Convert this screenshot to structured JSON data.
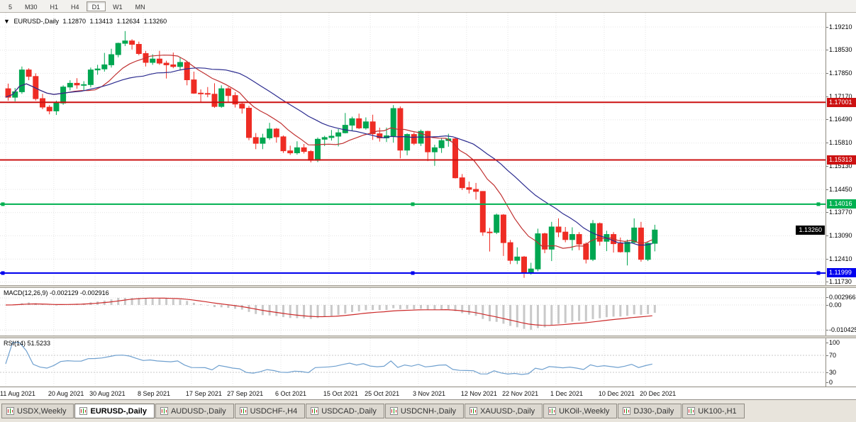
{
  "toolbar": {
    "timeframe_buttons": [
      "5",
      "M30",
      "H1",
      "H4",
      "D1",
      "W1",
      "MN"
    ],
    "active_timeframe": "D1"
  },
  "chart_header": {
    "marker": "▼",
    "symbol": "EURUSD-,Daily",
    "open": "1.12870",
    "high": "1.13413",
    "low": "1.12634",
    "close": "1.13260"
  },
  "chart_data": {
    "type": "candlestick",
    "symbol": "EURUSD-",
    "timeframe": "Daily",
    "ohlc_last": {
      "open": 1.1287,
      "high": 1.13413,
      "low": 1.12634,
      "close": 1.1326
    },
    "current_price_label": "1.13260",
    "price_ticks": [
      "1.19210",
      "1.18530",
      "1.17850",
      "1.17170",
      "1.16490",
      "1.15810",
      "1.15130",
      "1.14450",
      "1.13770",
      "1.13090",
      "1.12410",
      "1.11730"
    ],
    "date_labels": [
      {
        "label": "11 Aug 2021",
        "index": 0
      },
      {
        "label": "20 Aug 2021",
        "index": 7
      },
      {
        "label": "30 Aug 2021",
        "index": 13
      },
      {
        "label": "8 Sep 2021",
        "index": 20
      },
      {
        "label": "17 Sep 2021",
        "index": 27
      },
      {
        "label": "27 Sep 2021",
        "index": 33
      },
      {
        "label": "6 Oct 2021",
        "index": 40
      },
      {
        "label": "15 Oct 2021",
        "index": 47
      },
      {
        "label": "25 Oct 2021",
        "index": 53
      },
      {
        "label": "3 Nov 2021",
        "index": 60
      },
      {
        "label": "12 Nov 2021",
        "index": 67
      },
      {
        "label": "22 Nov 2021",
        "index": 73
      },
      {
        "label": "1 Dec 2021",
        "index": 80
      },
      {
        "label": "10 Dec 2021",
        "index": 87
      },
      {
        "label": "20 Dec 2021",
        "index": 93
      }
    ],
    "horizontal_lines": [
      {
        "price": 1.17001,
        "label": "1.17001",
        "color": "#cc1111",
        "handles": false
      },
      {
        "price": 1.15313,
        "label": "1.15313",
        "color": "#cc1111",
        "handles": false
      },
      {
        "price": 1.14016,
        "label": "1.14016",
        "color": "#00b050",
        "handles": true
      },
      {
        "price": 1.11999,
        "label": "1.11999",
        "color": "#0000ee",
        "handles": true
      }
    ],
    "moving_averages": [
      {
        "period": 10,
        "color": "#c03030",
        "name": "fast-ma"
      },
      {
        "period": 21,
        "color": "#2b2b8f",
        "name": "slow-ma"
      }
    ],
    "colors": {
      "up": "#00a651",
      "down": "#ee2c24"
    },
    "candles": [
      [
        1.174,
        1.1755,
        1.1705,
        1.1715
      ],
      [
        1.1715,
        1.1742,
        1.1703,
        1.1731
      ],
      [
        1.1731,
        1.1805,
        1.1725,
        1.1795
      ],
      [
        1.1795,
        1.18,
        1.1765,
        1.1776
      ],
      [
        1.1776,
        1.1785,
        1.1705,
        1.1711
      ],
      [
        1.1711,
        1.1725,
        1.168,
        1.1686
      ],
      [
        1.1686,
        1.1692,
        1.1665,
        1.1675
      ],
      [
        1.1675,
        1.1705,
        1.1663,
        1.1698
      ],
      [
        1.1698,
        1.175,
        1.1693,
        1.1745
      ],
      [
        1.1745,
        1.1765,
        1.1735,
        1.1756
      ],
      [
        1.1756,
        1.1771,
        1.174,
        1.1751
      ],
      [
        1.1751,
        1.1762,
        1.1735,
        1.1752
      ],
      [
        1.1752,
        1.1802,
        1.1744,
        1.1795
      ],
      [
        1.1795,
        1.181,
        1.1781,
        1.1798
      ],
      [
        1.1798,
        1.1845,
        1.179,
        1.181
      ],
      [
        1.181,
        1.1857,
        1.1802,
        1.184
      ],
      [
        1.184,
        1.1875,
        1.1832,
        1.1873
      ],
      [
        1.1873,
        1.1909,
        1.1865,
        1.188
      ],
      [
        1.188,
        1.1885,
        1.1855,
        1.187
      ],
      [
        1.187,
        1.1878,
        1.1838,
        1.1843
      ],
      [
        1.1843,
        1.1851,
        1.1805,
        1.1817
      ],
      [
        1.1817,
        1.1841,
        1.181,
        1.1827
      ],
      [
        1.1827,
        1.1851,
        1.181,
        1.1815
      ],
      [
        1.1815,
        1.1822,
        1.177,
        1.181
      ],
      [
        1.181,
        1.1846,
        1.18,
        1.1805
      ],
      [
        1.1805,
        1.1832,
        1.1795,
        1.1817
      ],
      [
        1.1817,
        1.1822,
        1.175,
        1.1766
      ],
      [
        1.1766,
        1.179,
        1.1725,
        1.1727
      ],
      [
        1.1727,
        1.1738,
        1.17,
        1.1726
      ],
      [
        1.1726,
        1.1745,
        1.1715,
        1.1724
      ],
      [
        1.1724,
        1.1756,
        1.1684,
        1.1688
      ],
      [
        1.1688,
        1.175,
        1.1684,
        1.174
      ],
      [
        1.174,
        1.1745,
        1.1702,
        1.172
      ],
      [
        1.172,
        1.173,
        1.1685,
        1.1695
      ],
      [
        1.1695,
        1.17,
        1.1667,
        1.1683
      ],
      [
        1.1683,
        1.169,
        1.1589,
        1.1597
      ],
      [
        1.1597,
        1.161,
        1.1563,
        1.158
      ],
      [
        1.158,
        1.1608,
        1.1563,
        1.1596
      ],
      [
        1.1596,
        1.164,
        1.159,
        1.1622
      ],
      [
        1.1622,
        1.1625,
        1.1582,
        1.1599
      ],
      [
        1.1599,
        1.1603,
        1.1552,
        1.1558
      ],
      [
        1.1558,
        1.1573,
        1.1546,
        1.1552
      ],
      [
        1.1552,
        1.1586,
        1.1547,
        1.1567
      ],
      [
        1.1567,
        1.1578,
        1.155,
        1.1556
      ],
      [
        1.1556,
        1.156,
        1.1524,
        1.153
      ],
      [
        1.153,
        1.1597,
        1.1525,
        1.1592
      ],
      [
        1.1592,
        1.1602,
        1.1572,
        1.1597
      ],
      [
        1.1597,
        1.1619,
        1.1588,
        1.1601
      ],
      [
        1.1601,
        1.1622,
        1.1571,
        1.1611
      ],
      [
        1.1611,
        1.1669,
        1.1609,
        1.1633
      ],
      [
        1.1633,
        1.1658,
        1.1617,
        1.1652
      ],
      [
        1.1652,
        1.1667,
        1.1622,
        1.1625
      ],
      [
        1.1625,
        1.1656,
        1.162,
        1.1643
      ],
      [
        1.1643,
        1.1664,
        1.159,
        1.1608
      ],
      [
        1.1608,
        1.1626,
        1.1585,
        1.1596
      ],
      [
        1.1596,
        1.1626,
        1.1584,
        1.1602
      ],
      [
        1.1602,
        1.1692,
        1.1582,
        1.1682
      ],
      [
        1.1682,
        1.1688,
        1.1536,
        1.156
      ],
      [
        1.156,
        1.1609,
        1.1545,
        1.1606
      ],
      [
        1.1606,
        1.1612,
        1.1575,
        1.158
      ],
      [
        1.158,
        1.162,
        1.1572,
        1.1615
      ],
      [
        1.1615,
        1.1617,
        1.1528,
        1.1555
      ],
      [
        1.1555,
        1.1576,
        1.1514,
        1.1567
      ],
      [
        1.1567,
        1.1596,
        1.1552,
        1.1588
      ],
      [
        1.1588,
        1.1608,
        1.157,
        1.1593
      ],
      [
        1.1593,
        1.1598,
        1.1477,
        1.1479
      ],
      [
        1.1479,
        1.149,
        1.1443,
        1.145
      ],
      [
        1.145,
        1.1468,
        1.1433,
        1.1445
      ],
      [
        1.1445,
        1.1464,
        1.1415,
        1.1439
      ],
      [
        1.1439,
        1.144,
        1.1309,
        1.132
      ],
      [
        1.132,
        1.1332,
        1.1263,
        1.1319
      ],
      [
        1.1319,
        1.1374,
        1.1314,
        1.137
      ],
      [
        1.137,
        1.1373,
        1.125,
        1.1289
      ],
      [
        1.1289,
        1.1297,
        1.1226,
        1.1237
      ],
      [
        1.1237,
        1.1275,
        1.1226,
        1.1247
      ],
      [
        1.1247,
        1.125,
        1.1186,
        1.12
      ],
      [
        1.12,
        1.123,
        1.1195,
        1.1212
      ],
      [
        1.1212,
        1.133,
        1.1205,
        1.1315
      ],
      [
        1.1315,
        1.1318,
        1.1258,
        1.127
      ],
      [
        1.127,
        1.135,
        1.1235,
        1.1335
      ],
      [
        1.1335,
        1.136,
        1.1305,
        1.132
      ],
      [
        1.132,
        1.1335,
        1.129,
        1.1298
      ],
      [
        1.1298,
        1.1334,
        1.1266,
        1.1313
      ],
      [
        1.1313,
        1.132,
        1.1267,
        1.1285
      ],
      [
        1.1285,
        1.129,
        1.1228,
        1.124
      ],
      [
        1.124,
        1.1355,
        1.1235,
        1.1345
      ],
      [
        1.1345,
        1.1348,
        1.128,
        1.1293
      ],
      [
        1.1293,
        1.1324,
        1.1264,
        1.1313
      ],
      [
        1.1313,
        1.132,
        1.126,
        1.1286
      ],
      [
        1.1286,
        1.1304,
        1.126,
        1.1262
      ],
      [
        1.1262,
        1.1298,
        1.1222,
        1.129
      ],
      [
        1.129,
        1.136,
        1.1285,
        1.1332
      ],
      [
        1.1332,
        1.135,
        1.1233,
        1.124
      ],
      [
        1.124,
        1.129,
        1.1235,
        1.1287
      ],
      [
        1.1287,
        1.13413,
        1.12634,
        1.1326
      ]
    ]
  },
  "macd_panel": {
    "label": "MACD(12,26,9) -0.002129 -0.002916",
    "fast": 12,
    "slow": 26,
    "signal": 9,
    "axis_labels": [
      "0.002966",
      "0.00",
      "-0.010425"
    ],
    "histogram_color": "#c9c9c9",
    "signal_color": "#cc2a2a"
  },
  "rsi_panel": {
    "label": "RSI(14) 51.5233",
    "period": 14,
    "value": 51.5233,
    "axis_labels": [
      "100",
      "70",
      "30",
      "0"
    ],
    "levels": [
      70,
      30
    ],
    "line_color": "#6fa0cf"
  },
  "bottom_tabs": {
    "tabs": [
      "USDX,Weekly",
      "EURUSD-,Daily",
      "AUDUSD-,Daily",
      "USDCHF-,H4",
      "USDCAD-,Daily",
      "USDCNH-,Daily",
      "XAUUSD-,Daily",
      "UKOil-,Weekly",
      "DJ30-,Daily",
      "UK100-,H1"
    ],
    "active": "EURUSD-,Daily"
  }
}
